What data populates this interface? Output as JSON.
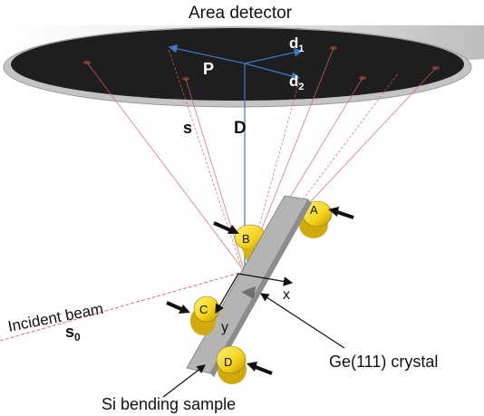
{
  "labels": {
    "detector": "Area detector",
    "d1": "d",
    "d1_sub": "1",
    "d2": "d",
    "d2_sub": "2",
    "P": "P",
    "D": "D",
    "s": "s",
    "incident_beam": "Incident beam",
    "s0": "s",
    "s0_sub": "0",
    "x": "x",
    "y": "y",
    "crystal": "Ge(111) crystal",
    "sample": "Si bending sample",
    "support_A": "A",
    "support_B": "B",
    "support_C": "C",
    "support_D": "D"
  },
  "colors": {
    "detector_face": "#1e1e1e",
    "detector_rim": "#b0b0b0",
    "detector_body": "#d9d9d9",
    "vector_blue": "#3c78c8",
    "ray_red": "#e06060",
    "support_yellow": "#f2d21a",
    "sample_gray": "#b4b4b4",
    "arrow_black": "#111111"
  }
}
